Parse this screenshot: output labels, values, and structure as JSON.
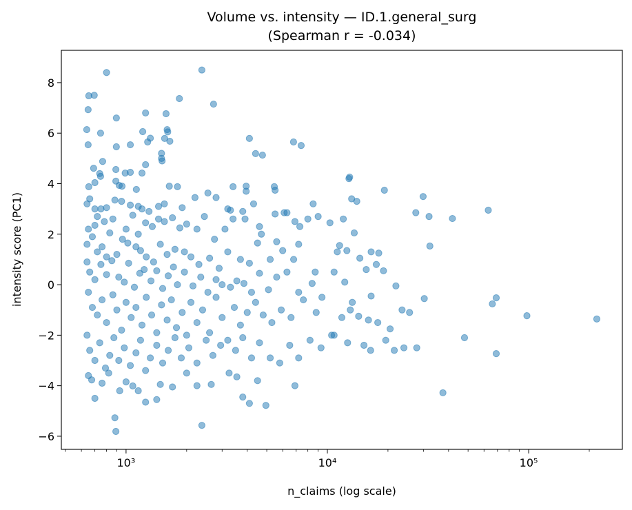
{
  "chart_data": {
    "type": "scatter",
    "title": "Volume vs. intensity — ID.1.general_surg",
    "subtitle": "(Spearman r = -0.034)",
    "xlabel": "n_claims (log scale)",
    "ylabel": "intensity score (PC1)",
    "xscale": "log",
    "xlim": [
      477,
      292000
    ],
    "ylim": [
      -6.52,
      9.28
    ],
    "xticks": [
      {
        "value": 1000,
        "label": "10³"
      },
      {
        "value": 10000,
        "label": "10⁴"
      },
      {
        "value": 100000,
        "label": "10⁵"
      }
    ],
    "yticks": [
      -6,
      -4,
      -2,
      0,
      2,
      4,
      6,
      8
    ],
    "yticklabels": [
      "−6",
      "−4",
      "−2",
      "0",
      "2",
      "4",
      "6",
      "8"
    ],
    "grid": false,
    "marker_color": "#1f77b4",
    "marker_alpha": 0.5,
    "points": [
      [
        800,
        8.4
      ],
      [
        2380,
        8.5
      ],
      [
        653,
        7.48
      ],
      [
        695,
        7.5
      ],
      [
        2720,
        7.15
      ],
      [
        1840,
        7.37
      ],
      [
        648,
        6.93
      ],
      [
        895,
        6.6
      ],
      [
        1250,
        6.8
      ],
      [
        1580,
        6.77
      ],
      [
        638,
        6.14
      ],
      [
        747,
        6.0
      ],
      [
        1210,
        6.06
      ],
      [
        1600,
        6.14
      ],
      [
        1610,
        6.05
      ],
      [
        648,
        5.54
      ],
      [
        895,
        5.46
      ],
      [
        1050,
        5.54
      ],
      [
        1320,
        5.8
      ],
      [
        1280,
        5.65
      ],
      [
        1555,
        5.79
      ],
      [
        1650,
        5.68
      ],
      [
        1500,
        5.2
      ],
      [
        1510,
        4.9
      ],
      [
        1500,
        5.0
      ],
      [
        4100,
        5.79
      ],
      [
        4400,
        5.19
      ],
      [
        4760,
        5.13
      ],
      [
        6790,
        5.65
      ],
      [
        7410,
        5.51
      ],
      [
        690,
        4.61
      ],
      [
        765,
        4.88
      ],
      [
        890,
        4.56
      ],
      [
        990,
        4.42
      ],
      [
        1050,
        4.45
      ],
      [
        1250,
        4.75
      ],
      [
        1200,
        4.42
      ],
      [
        653,
        3.88
      ],
      [
        740,
        4.4
      ],
      [
        747,
        4.29
      ],
      [
        700,
        4.04
      ],
      [
        890,
        4.1
      ],
      [
        925,
        3.93
      ],
      [
        955,
        3.9
      ],
      [
        1125,
        3.77
      ],
      [
        1640,
        3.9
      ],
      [
        1800,
        3.88
      ],
      [
        2550,
        3.63
      ],
      [
        3400,
        3.88
      ],
      [
        3950,
        3.9
      ],
      [
        3950,
        3.7
      ],
      [
        5450,
        3.88
      ],
      [
        5500,
        3.74
      ],
      [
        12800,
        4.2
      ],
      [
        12900,
        4.26
      ],
      [
        19200,
        3.74
      ],
      [
        29900,
        3.49
      ],
      [
        32000,
        2.7
      ],
      [
        41800,
        2.62
      ],
      [
        63000,
        2.95
      ],
      [
        32300,
        1.53
      ],
      [
        98000,
        -1.23
      ],
      [
        218000,
        -1.36
      ],
      [
        69000,
        -2.73
      ],
      [
        48000,
        -2.1
      ],
      [
        37500,
        -4.28
      ],
      [
        66000,
        -0.76
      ],
      [
        69000,
        -0.52
      ],
      [
        30300,
        -0.55
      ],
      [
        21900,
        -0.05
      ],
      [
        27800,
        -2.5
      ],
      [
        880,
        -5.27
      ],
      [
        890,
        -5.81
      ],
      [
        2380,
        -5.57
      ],
      [
        4950,
        -4.78
      ],
      [
        3800,
        -4.45
      ],
      [
        675,
        -3.77
      ],
      [
        1080,
        -4.01
      ],
      [
        640,
        3.2
      ],
      [
        660,
        3.4
      ],
      [
        700,
        3.0
      ],
      [
        750,
        3.0
      ],
      [
        800,
        3.05
      ],
      [
        880,
        3.35
      ],
      [
        950,
        3.3
      ],
      [
        1050,
        3.15
      ],
      [
        1150,
        3.1
      ],
      [
        1200,
        3.0
      ],
      [
        1300,
        2.9
      ],
      [
        1450,
        3.1
      ],
      [
        1550,
        3.2
      ],
      [
        1900,
        3.05
      ],
      [
        2200,
        3.45
      ],
      [
        2800,
        3.45
      ],
      [
        3200,
        3.0
      ],
      [
        3300,
        2.95
      ],
      [
        3800,
        2.9
      ],
      [
        4300,
        3.2
      ],
      [
        5500,
        2.8
      ],
      [
        6300,
        2.85
      ],
      [
        8500,
        3.2
      ],
      [
        9000,
        2.7
      ],
      [
        13200,
        3.4
      ],
      [
        14000,
        3.3
      ],
      [
        27500,
        2.85
      ],
      [
        650,
        2.2
      ],
      [
        700,
        2.35
      ],
      [
        720,
        2.7
      ],
      [
        780,
        2.5
      ],
      [
        830,
        2.05
      ],
      [
        860,
        2.6
      ],
      [
        1000,
        2.2
      ],
      [
        1080,
        2.75
      ],
      [
        1150,
        2.0
      ],
      [
        1250,
        2.45
      ],
      [
        1350,
        2.3
      ],
      [
        1450,
        2.6
      ],
      [
        1550,
        2.5
      ],
      [
        1700,
        2.65
      ],
      [
        1850,
        2.25
      ],
      [
        2000,
        2.4
      ],
      [
        2250,
        2.2
      ],
      [
        2450,
        2.7
      ],
      [
        2750,
        1.8
      ],
      [
        3100,
        2.2
      ],
      [
        3400,
        2.6
      ],
      [
        3900,
        2.6
      ],
      [
        4600,
        2.3
      ],
      [
        4700,
        2.0
      ],
      [
        5600,
        1.7
      ],
      [
        6100,
        2.85
      ],
      [
        6900,
        2.5
      ],
      [
        7300,
        2.3
      ],
      [
        8000,
        2.6
      ],
      [
        10300,
        2.45
      ],
      [
        12000,
        2.6
      ],
      [
        13600,
        2.05
      ],
      [
        16500,
        1.3
      ],
      [
        18000,
        1.25
      ],
      [
        11500,
        1.55
      ],
      [
        640,
        1.6
      ],
      [
        680,
        1.9
      ],
      [
        720,
        1.3
      ],
      [
        760,
        1.5
      ],
      [
        800,
        1.1
      ],
      [
        900,
        1.2
      ],
      [
        960,
        1.8
      ],
      [
        1020,
        1.65
      ],
      [
        1120,
        1.5
      ],
      [
        1180,
        1.35
      ],
      [
        1260,
        1.1
      ],
      [
        1370,
        0.9
      ],
      [
        1480,
        1.6
      ],
      [
        1600,
        1.2
      ],
      [
        1750,
        1.4
      ],
      [
        1950,
        1.3
      ],
      [
        2100,
        1.1
      ],
      [
        2300,
        0.8
      ],
      [
        2600,
        1.05
      ],
      [
        2900,
        0.65
      ],
      [
        3200,
        1.3
      ],
      [
        3700,
        1.0
      ],
      [
        4100,
        0.85
      ],
      [
        4500,
        1.65
      ],
      [
        5200,
        1.0
      ],
      [
        6000,
        1.35
      ],
      [
        6800,
        1.0
      ],
      [
        7200,
        1.6
      ],
      [
        8700,
        0.5
      ],
      [
        11200,
        1.3
      ],
      [
        12500,
        1.35
      ],
      [
        14500,
        1.05
      ],
      [
        17500,
        0.8
      ],
      [
        19000,
        0.55
      ],
      [
        640,
        0.9
      ],
      [
        660,
        0.5
      ],
      [
        700,
        0.2
      ],
      [
        750,
        0.8
      ],
      [
        800,
        0.4
      ],
      [
        850,
        0.95
      ],
      [
        920,
        0.3
      ],
      [
        980,
        0.1
      ],
      [
        1030,
        0.85
      ],
      [
        1100,
        -0.1
      ],
      [
        1170,
        0.45
      ],
      [
        1230,
        0.6
      ],
      [
        1330,
        0.15
      ],
      [
        1420,
        0.55
      ],
      [
        1520,
        -0.15
      ],
      [
        1620,
        0.35
      ],
      [
        1720,
        0.7
      ],
      [
        1800,
        0.0
      ],
      [
        1950,
        0.5
      ],
      [
        2150,
        -0.05
      ],
      [
        2350,
        0.3
      ],
      [
        2550,
        -0.3
      ],
      [
        2800,
        0.2
      ],
      [
        3000,
        0.0
      ],
      [
        3300,
        -0.1
      ],
      [
        3550,
        0.15
      ],
      [
        3850,
        0.05
      ],
      [
        4200,
        -0.3
      ],
      [
        4600,
        0.45
      ],
      [
        5100,
        -0.2
      ],
      [
        5600,
        0.3
      ],
      [
        6300,
        0.5
      ],
      [
        7200,
        -0.3
      ],
      [
        8400,
        0.05
      ],
      [
        9400,
        -0.5
      ],
      [
        10800,
        0.5
      ],
      [
        12200,
        0.1
      ],
      [
        13300,
        -0.7
      ],
      [
        15600,
        0.6
      ],
      [
        16500,
        -0.45
      ],
      [
        650,
        -0.3
      ],
      [
        680,
        -0.9
      ],
      [
        720,
        -1.2
      ],
      [
        760,
        -0.6
      ],
      [
        800,
        -1.5
      ],
      [
        860,
        -0.4
      ],
      [
        900,
        -1.0
      ],
      [
        950,
        -1.8
      ],
      [
        1000,
        -0.7
      ],
      [
        1060,
        -1.3
      ],
      [
        1120,
        -0.9
      ],
      [
        1200,
        -1.6
      ],
      [
        1260,
        -0.5
      ],
      [
        1340,
        -1.2
      ],
      [
        1420,
        -1.9
      ],
      [
        1500,
        -0.8
      ],
      [
        1600,
        -1.4
      ],
      [
        1680,
        -0.6
      ],
      [
        1780,
        -1.7
      ],
      [
        1900,
        -1.1
      ],
      [
        2000,
        -2.0
      ],
      [
        2100,
        -0.7
      ],
      [
        2250,
        -1.5
      ],
      [
        2400,
        -1.0
      ],
      [
        2600,
        -1.9
      ],
      [
        2800,
        -0.5
      ],
      [
        3000,
        -1.3
      ],
      [
        3200,
        -2.2
      ],
      [
        3450,
        -0.9
      ],
      [
        3700,
        -1.6
      ],
      [
        4000,
        -1.1
      ],
      [
        4400,
        -0.7
      ],
      [
        4800,
        -1.2
      ],
      [
        5300,
        -1.5
      ],
      [
        5900,
        -1.0
      ],
      [
        6600,
        -1.3
      ],
      [
        7600,
        -0.6
      ],
      [
        8800,
        -1.1
      ],
      [
        10500,
        -2.0
      ],
      [
        11800,
        -1.3
      ],
      [
        13000,
        -1.0
      ],
      [
        14300,
        -1.25
      ],
      [
        16000,
        -1.4
      ],
      [
        17800,
        -1.5
      ],
      [
        20500,
        -1.75
      ],
      [
        23500,
        -1.0
      ],
      [
        25600,
        -1.1
      ],
      [
        640,
        -2.0
      ],
      [
        660,
        -2.6
      ],
      [
        700,
        -3.0
      ],
      [
        740,
        -2.3
      ],
      [
        790,
        -3.3
      ],
      [
        830,
        -2.8
      ],
      [
        870,
        -2.1
      ],
      [
        920,
        -3.0
      ],
      [
        980,
        -2.5
      ],
      [
        1050,
        -3.2
      ],
      [
        1120,
        -2.7
      ],
      [
        1180,
        -2.2
      ],
      [
        1250,
        -3.4
      ],
      [
        1320,
        -2.9
      ],
      [
        1420,
        -2.4
      ],
      [
        1520,
        -3.1
      ],
      [
        1620,
        -2.6
      ],
      [
        1750,
        -2.1
      ],
      [
        1880,
        -2.9
      ],
      [
        2050,
        -2.5
      ],
      [
        2250,
        -3.1
      ],
      [
        2500,
        -2.2
      ],
      [
        2700,
        -2.8
      ],
      [
        2950,
        -2.4
      ],
      [
        3250,
        -3.5
      ],
      [
        3500,
        -2.6
      ],
      [
        3800,
        -2.1
      ],
      [
        4200,
        -2.9
      ],
      [
        4600,
        -2.3
      ],
      [
        5200,
        -2.9
      ],
      [
        5800,
        -3.1
      ],
      [
        6500,
        -2.4
      ],
      [
        7200,
        -2.9
      ],
      [
        8200,
        -2.2
      ],
      [
        9300,
        -2.5
      ],
      [
        10800,
        -2.0
      ],
      [
        12600,
        -2.3
      ],
      [
        15200,
        -2.4
      ],
      [
        16400,
        -2.6
      ],
      [
        19500,
        -2.2
      ],
      [
        21500,
        -2.6
      ],
      [
        24000,
        -2.5
      ],
      [
        650,
        -3.6
      ],
      [
        700,
        -4.5
      ],
      [
        760,
        -3.9
      ],
      [
        820,
        -3.5
      ],
      [
        930,
        -4.2
      ],
      [
        1000,
        -3.85
      ],
      [
        1150,
        -4.2
      ],
      [
        1250,
        -4.65
      ],
      [
        1420,
        -4.55
      ],
      [
        1480,
        -3.95
      ],
      [
        1700,
        -4.05
      ],
      [
        2000,
        -3.5
      ],
      [
        2250,
        -4.0
      ],
      [
        2650,
        -3.95
      ],
      [
        3550,
        -3.65
      ],
      [
        4500,
        -3.8
      ],
      [
        6900,
        -4.0
      ],
      [
        4100,
        -4.7
      ]
    ]
  }
}
